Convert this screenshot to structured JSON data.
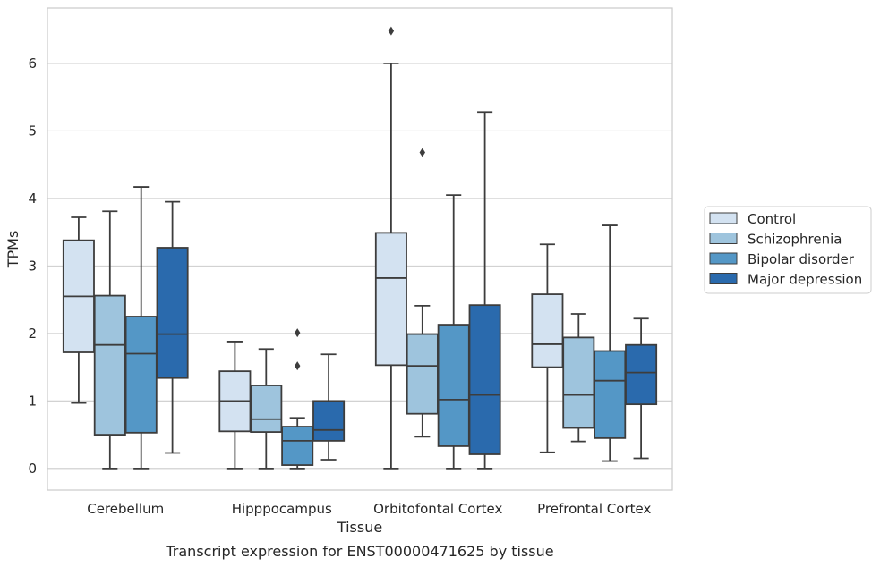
{
  "chart_data": {
    "type": "box",
    "caption": "Transcript expression for ENST00000471625 by tissue",
    "xlabel": "Tissue",
    "ylabel": "TPMs",
    "ylim": [
      -0.32,
      6.82
    ],
    "yticks": [
      0,
      1,
      2,
      3,
      4,
      5,
      6
    ],
    "grid": "horizontal",
    "legend_position": "right",
    "categories": [
      "Cerebellum",
      "Hipppocampus",
      "Orbitofontal Cortex",
      "Prefrontal Cortex"
    ],
    "series": [
      {
        "name": "Control",
        "color": "#d3e2f1",
        "boxes": [
          {
            "min": 0.97,
            "q1": 1.72,
            "median": 2.55,
            "q3": 3.38,
            "max": 3.72,
            "outliers": []
          },
          {
            "min": 0.0,
            "q1": 0.55,
            "median": 1.0,
            "q3": 1.44,
            "max": 1.88,
            "outliers": []
          },
          {
            "min": 0.0,
            "q1": 1.53,
            "median": 2.82,
            "q3": 3.49,
            "max": 6.0,
            "outliers": [
              6.48
            ]
          },
          {
            "min": 0.24,
            "q1": 1.5,
            "median": 1.84,
            "q3": 2.58,
            "max": 3.32,
            "outliers": []
          }
        ]
      },
      {
        "name": "Schizophrenia",
        "color": "#9ec4dd",
        "boxes": [
          {
            "min": 0.0,
            "q1": 0.5,
            "median": 1.83,
            "q3": 2.56,
            "max": 3.81,
            "outliers": []
          },
          {
            "min": 0.0,
            "q1": 0.54,
            "median": 0.73,
            "q3": 1.23,
            "max": 1.77,
            "outliers": []
          },
          {
            "min": 0.47,
            "q1": 0.81,
            "median": 1.52,
            "q3": 1.99,
            "max": 2.41,
            "outliers": [
              4.68
            ]
          },
          {
            "min": 0.4,
            "q1": 0.6,
            "median": 1.09,
            "q3": 1.94,
            "max": 2.29,
            "outliers": []
          }
        ]
      },
      {
        "name": "Bipolar disorder",
        "color": "#5497c6",
        "boxes": [
          {
            "min": 0.0,
            "q1": 0.53,
            "median": 1.7,
            "q3": 2.25,
            "max": 4.17,
            "outliers": []
          },
          {
            "min": 0.0,
            "q1": 0.05,
            "median": 0.41,
            "q3": 0.62,
            "max": 0.75,
            "outliers": [
              1.52,
              2.01
            ]
          },
          {
            "min": 0.0,
            "q1": 0.33,
            "median": 1.02,
            "q3": 2.13,
            "max": 4.05,
            "outliers": []
          },
          {
            "min": 0.11,
            "q1": 0.45,
            "median": 1.3,
            "q3": 1.74,
            "max": 3.6,
            "outliers": []
          }
        ]
      },
      {
        "name": "Major depression",
        "color": "#2a6aad",
        "boxes": [
          {
            "min": 0.23,
            "q1": 1.34,
            "median": 1.99,
            "q3": 3.27,
            "max": 3.95,
            "outliers": []
          },
          {
            "min": 0.13,
            "q1": 0.41,
            "median": 0.57,
            "q3": 1.0,
            "max": 1.69,
            "outliers": []
          },
          {
            "min": 0.0,
            "q1": 0.21,
            "median": 1.09,
            "q3": 2.42,
            "max": 5.28,
            "outliers": []
          },
          {
            "min": 0.15,
            "q1": 0.95,
            "median": 1.42,
            "q3": 1.83,
            "max": 2.22,
            "outliers": []
          }
        ]
      }
    ]
  }
}
